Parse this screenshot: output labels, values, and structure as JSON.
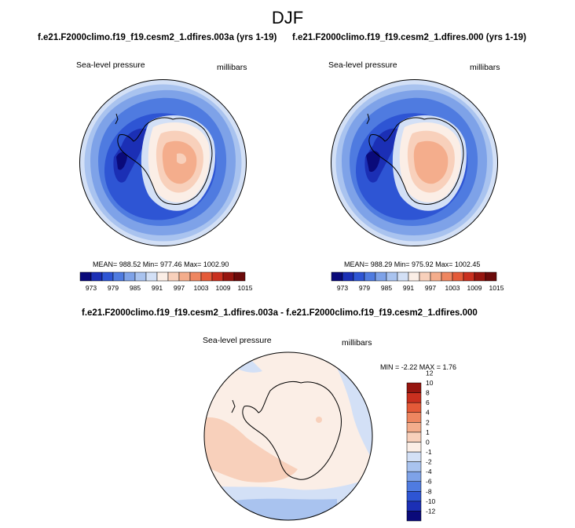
{
  "title": "DJF",
  "panels": [
    {
      "title": "f.e21.F2000climo.f19_f19.cesm2_1.dfires.003a (yrs 1-19)",
      "variable": "Sea-level pressure",
      "units": "millibars",
      "stats": "MEAN= 988.52  Min= 977.46  Max= 1002.90"
    },
    {
      "title": "f.e21.F2000climo.f19_f19.cesm2_1.dfires.000 (yrs 1-19)",
      "variable": "Sea-level pressure",
      "units": "millibars",
      "stats": "MEAN= 988.29  Min= 975.92  Max= 1002.45"
    },
    {
      "title": "f.e21.F2000climo.f19_f19.cesm2_1.dfires.003a - f.e21.F2000climo.f19_f19.cesm2_1.dfires.000",
      "variable": "Sea-level pressure",
      "units": "millibars",
      "stats": "MIN =  -2.22 MAX =   1.76"
    }
  ],
  "colorbar_abs": {
    "colors": [
      "#0a0a7a",
      "#1b2fb5",
      "#2e55d4",
      "#4f7be0",
      "#7ea2e8",
      "#a9c3ef",
      "#d3e0f6",
      "#fbeee6",
      "#f8d0bb",
      "#f4ad8c",
      "#ee8660",
      "#e45a38",
      "#c9301f",
      "#96150f",
      "#6b0a0a"
    ],
    "labels": [
      "973",
      "979",
      "985",
      "991",
      "997",
      "1003",
      "1009",
      "1015"
    ]
  },
  "colorbar_diff": {
    "colors": [
      "#0a0a7a",
      "#1b2fb5",
      "#2e55d4",
      "#4f7be0",
      "#7ea2e8",
      "#a9c3ef",
      "#d3e0f6",
      "#fbeee6",
      "#f8d0bb",
      "#f4ad8c",
      "#ee8660",
      "#e45a38",
      "#c9301f",
      "#96150f"
    ],
    "labels": [
      "-12",
      "-10",
      "-8",
      "-6",
      "-4",
      "-2",
      "-1",
      "0",
      "1",
      "2",
      "4",
      "6",
      "8",
      "10",
      "12"
    ]
  }
}
